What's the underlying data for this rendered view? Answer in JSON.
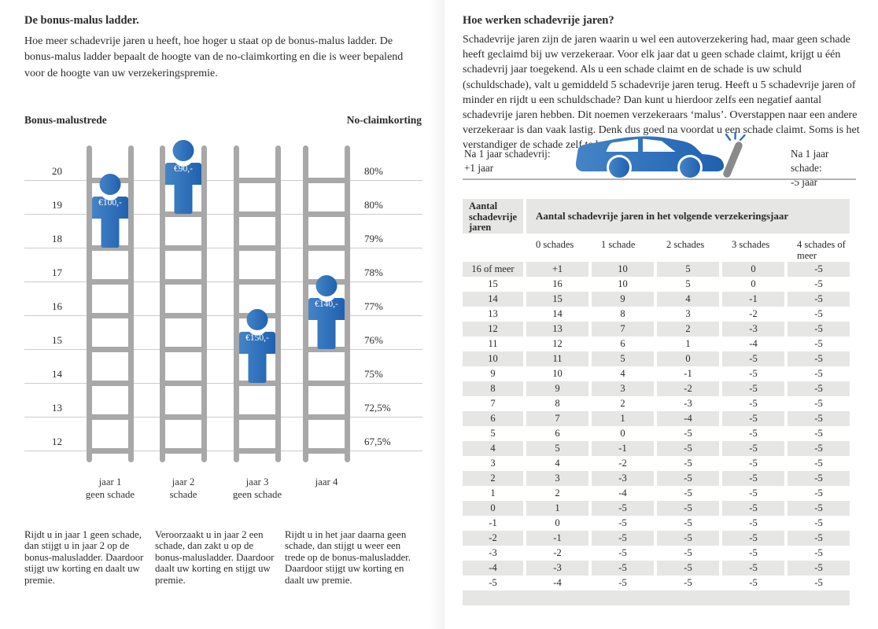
{
  "left_page": {
    "title": "De bonus-malus ladder.",
    "intro": "Hoe meer schadevrije jaren u heeft, hoe hoger u staat op de bonus-malus ladder. De bonus-malus ladder bepaalt de hoogte van de no-claimkorting en die is weer bepalend voor de hoogte van uw verzekeringspremie.",
    "ladder_chart": {
      "left_axis_title": "Bonus-malustrede",
      "right_axis_title": "No-claimkorting",
      "rungs": [
        {
          "trede": "20",
          "korting": "80%"
        },
        {
          "trede": "19",
          "korting": "80%"
        },
        {
          "trede": "18",
          "korting": "79%"
        },
        {
          "trede": "17",
          "korting": "78%"
        },
        {
          "trede": "16",
          "korting": "77%"
        },
        {
          "trede": "15",
          "korting": "76%"
        },
        {
          "trede": "14",
          "korting": "75%"
        },
        {
          "trede": "13",
          "korting": "72,5%"
        },
        {
          "trede": "12",
          "korting": "67,5%"
        }
      ],
      "ladders": [
        {
          "caption": [
            "jaar 1",
            "geen schade"
          ],
          "figure_premium": "€100,-",
          "figure_stands_at_trede": "18",
          "figure_feet_line": 2
        },
        {
          "caption": [
            "jaar 2",
            "schade"
          ],
          "figure_premium": "€90,-",
          "figure_stands_at_trede": "19",
          "figure_feet_line": 1
        },
        {
          "caption": [
            "jaar 3",
            "geen schade"
          ],
          "figure_premium": "€150,-",
          "figure_stands_at_trede": "14",
          "figure_feet_line": 6
        },
        {
          "caption": [
            "jaar 4"
          ],
          "figure_premium": "€140,-",
          "figure_stands_at_trede": "15",
          "figure_feet_line": 5
        }
      ]
    },
    "footnotes": [
      "Rijdt u in jaar 1 geen schade, dan stijgt u in jaar 2 op de bonus-malusladder. Daardoor stijgt uw korting en daalt uw premie.",
      "Veroorzaakt u in jaar 2 een schade, dan zakt u op de bonus-malusladder. Daardoor daalt uw korting en stijgt uw premie.",
      "Rijdt u in het jaar daarna geen schade, dan stijgt u weer een trede op de bonus-malusladder. Daardoor stijgt uw korting en daalt uw premie."
    ]
  },
  "right_page": {
    "title": "Hoe werken schadevrije jaren?",
    "intro": "Schadevrije jaren zijn de jaren waarin u wel een autoverzekering had, maar geen schade heeft geclaimd bij uw verzekeraar. Voor elk jaar dat u geen schade claimt, krijgt u één schadevrij jaar toegekend. Als u een schade claimt en de schade is uw schuld (schuldschade), valt u gemiddeld 5 schadevrije jaren terug. Heeft u 5 schadevrije jaren of minder en rijdt u een schuldschade? Dan kunt u hierdoor zelfs een negatief aantal schadevrije jaren hebben. Dit noemen verzekeraars ‘malus’. Overstappen naar een andere verzekeraar is dan vaak lastig. Denk dus goed na voordat u een schade claimt. Soms is het verstandiger de schade zelf te betalen.",
    "car_diagram": {
      "left_caption": [
        "Na 1 jaar schadevrij:",
        "+1 jaar"
      ],
      "right_caption": [
        "Na 1 jaar schade:",
        "-5 jaar"
      ]
    },
    "table": {
      "row_header_title": "Aantal schadevrije jaren",
      "main_header": "Aantal schadevrije jaren in het volgende verzekeringsjaar",
      "column_headers": [
        "0 schades",
        "1 schade",
        "2 schades",
        "3 schades",
        "4 schades of meer"
      ],
      "rows": [
        {
          "label": "16 of meer",
          "values": [
            "+1",
            "10",
            "5",
            "0",
            "-5"
          ]
        },
        {
          "label": "15",
          "values": [
            "16",
            "10",
            "5",
            "0",
            "-5"
          ]
        },
        {
          "label": "14",
          "values": [
            "15",
            "9",
            "4",
            "-1",
            "-5"
          ]
        },
        {
          "label": "13",
          "values": [
            "14",
            "8",
            "3",
            "-2",
            "-5"
          ]
        },
        {
          "label": "12",
          "values": [
            "13",
            "7",
            "2",
            "-3",
            "-5"
          ]
        },
        {
          "label": "11",
          "values": [
            "12",
            "6",
            "1",
            "-4",
            "-5"
          ]
        },
        {
          "label": "10",
          "values": [
            "11",
            "5",
            "0",
            "-5",
            "-5"
          ]
        },
        {
          "label": "9",
          "values": [
            "10",
            "4",
            "-1",
            "-5",
            "-5"
          ]
        },
        {
          "label": "8",
          "values": [
            "9",
            "3",
            "-2",
            "-5",
            "-5"
          ]
        },
        {
          "label": "7",
          "values": [
            "8",
            "2",
            "-3",
            "-5",
            "-5"
          ]
        },
        {
          "label": "6",
          "values": [
            "7",
            "1",
            "-4",
            "-5",
            "-5"
          ]
        },
        {
          "label": "5",
          "values": [
            "6",
            "0",
            "-5",
            "-5",
            "-5"
          ]
        },
        {
          "label": "4",
          "values": [
            "5",
            "-1",
            "-5",
            "-5",
            "-5"
          ]
        },
        {
          "label": "3",
          "values": [
            "4",
            "-2",
            "-5",
            "-5",
            "-5"
          ]
        },
        {
          "label": "2",
          "values": [
            "3",
            "-3",
            "-5",
            "-5",
            "-5"
          ]
        },
        {
          "label": "1",
          "values": [
            "2",
            "-4",
            "-5",
            "-5",
            "-5"
          ]
        },
        {
          "label": "0",
          "values": [
            "1",
            "-5",
            "-5",
            "-5",
            "-5"
          ]
        },
        {
          "label": "-1",
          "values": [
            "0",
            "-5",
            "-5",
            "-5",
            "-5"
          ]
        },
        {
          "label": "-2",
          "values": [
            "-1",
            "-5",
            "-5",
            "-5",
            "-5"
          ]
        },
        {
          "label": "-3",
          "values": [
            "-2",
            "-5",
            "-5",
            "-5",
            "-5"
          ]
        },
        {
          "label": "-4",
          "values": [
            "-3",
            "-5",
            "-5",
            "-5",
            "-5"
          ]
        },
        {
          "label": "-5",
          "values": [
            "-4",
            "-5",
            "-5",
            "-5",
            "-5"
          ]
        }
      ]
    }
  },
  "icons": {
    "person": "person-pictogram",
    "car": "car-side-silhouette-crashing-into-post",
    "post": "crash-post"
  },
  "colors": {
    "brand_blue": "#2e6fbe",
    "blue_gradient_light": "#4484c6",
    "blue_gradient_dark": "#2061b0",
    "ladder_gray": "#a8a8a8",
    "gridline_gray": "#cbcbcb",
    "table_row_gray": "#e6e6e4",
    "post_gray": "#8a8a8a"
  }
}
